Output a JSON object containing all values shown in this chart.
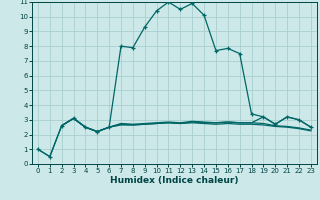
{
  "xlabel": "Humidex (Indice chaleur)",
  "bg_color": "#cce8e8",
  "grid_color": "#aacfcf",
  "line_color": "#006666",
  "tick_color": "#004444",
  "xlim": [
    -0.5,
    23.5
  ],
  "ylim": [
    0,
    11
  ],
  "xticks": [
    0,
    1,
    2,
    3,
    4,
    5,
    6,
    7,
    8,
    9,
    10,
    11,
    12,
    13,
    14,
    15,
    16,
    17,
    18,
    19,
    20,
    21,
    22,
    23
  ],
  "yticks": [
    0,
    1,
    2,
    3,
    4,
    5,
    6,
    7,
    8,
    9,
    10,
    11
  ],
  "series1": [
    [
      0,
      1.0
    ],
    [
      1,
      0.5
    ],
    [
      2,
      2.6
    ],
    [
      3,
      3.1
    ],
    [
      4,
      2.5
    ],
    [
      5,
      2.2
    ],
    [
      6,
      2.5
    ],
    [
      7,
      8.0
    ],
    [
      8,
      7.9
    ],
    [
      9,
      9.3
    ],
    [
      10,
      10.4
    ],
    [
      11,
      11.0
    ],
    [
      12,
      10.5
    ],
    [
      13,
      10.9
    ],
    [
      14,
      10.1
    ],
    [
      15,
      7.7
    ],
    [
      16,
      7.85
    ],
    [
      17,
      7.5
    ],
    [
      18,
      3.4
    ],
    [
      19,
      3.2
    ],
    [
      20,
      2.7
    ],
    [
      21,
      3.2
    ],
    [
      22,
      3.0
    ],
    [
      23,
      2.5
    ]
  ],
  "series2": [
    [
      2,
      2.6
    ],
    [
      3,
      3.1
    ],
    [
      4,
      2.5
    ],
    [
      5,
      2.2
    ],
    [
      6,
      2.5
    ],
    [
      7,
      2.75
    ],
    [
      8,
      2.7
    ],
    [
      9,
      2.75
    ],
    [
      10,
      2.8
    ],
    [
      11,
      2.85
    ],
    [
      12,
      2.8
    ],
    [
      13,
      2.9
    ],
    [
      14,
      2.85
    ],
    [
      15,
      2.8
    ],
    [
      16,
      2.85
    ],
    [
      17,
      2.8
    ],
    [
      18,
      2.8
    ],
    [
      19,
      2.75
    ],
    [
      20,
      2.6
    ],
    [
      21,
      2.55
    ],
    [
      22,
      2.45
    ],
    [
      23,
      2.3
    ]
  ],
  "series3": [
    [
      2,
      2.6
    ],
    [
      3,
      3.1
    ],
    [
      4,
      2.5
    ],
    [
      5,
      2.2
    ],
    [
      6,
      2.5
    ],
    [
      7,
      2.65
    ],
    [
      8,
      2.65
    ],
    [
      9,
      2.7
    ],
    [
      10,
      2.75
    ],
    [
      11,
      2.8
    ],
    [
      12,
      2.75
    ],
    [
      13,
      2.8
    ],
    [
      14,
      2.75
    ],
    [
      15,
      2.7
    ],
    [
      16,
      2.75
    ],
    [
      17,
      2.7
    ],
    [
      18,
      2.7
    ],
    [
      19,
      2.65
    ],
    [
      20,
      2.55
    ],
    [
      21,
      2.5
    ],
    [
      22,
      2.4
    ],
    [
      23,
      2.25
    ]
  ],
  "series4": [
    [
      0,
      1.0
    ],
    [
      1,
      0.5
    ],
    [
      2,
      2.6
    ],
    [
      3,
      3.1
    ],
    [
      4,
      2.5
    ],
    [
      5,
      2.2
    ],
    [
      6,
      2.5
    ],
    [
      7,
      2.7
    ],
    [
      8,
      2.65
    ],
    [
      9,
      2.7
    ],
    [
      10,
      2.75
    ],
    [
      11,
      2.8
    ],
    [
      12,
      2.75
    ],
    [
      13,
      2.85
    ],
    [
      14,
      2.8
    ],
    [
      15,
      2.8
    ],
    [
      16,
      2.85
    ],
    [
      17,
      2.8
    ],
    [
      18,
      2.8
    ],
    [
      19,
      3.2
    ],
    [
      20,
      2.7
    ],
    [
      21,
      3.2
    ],
    [
      22,
      3.0
    ],
    [
      23,
      2.5
    ]
  ]
}
